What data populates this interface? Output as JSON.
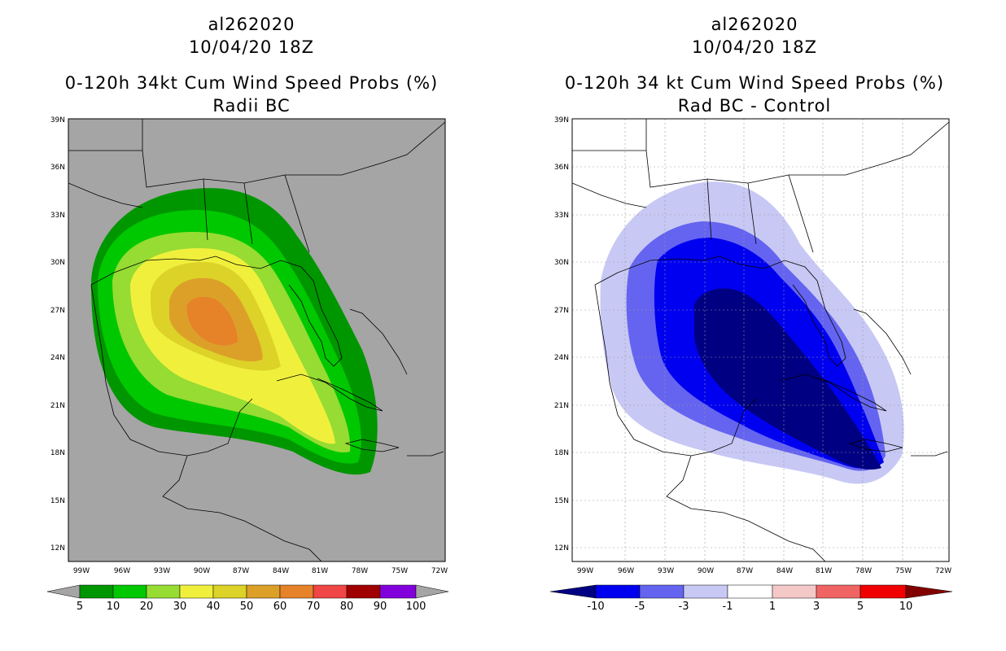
{
  "panels": [
    {
      "id": "left",
      "title_line1": "al262020",
      "title_line2": "10/04/20 18Z",
      "title_line3": "0-120h 34kt Cum Wind Speed Probs (%)",
      "title_line4": "Radii BC",
      "background_color": "#a5a5a5",
      "colorbar_labels": [
        "5",
        "10",
        "20",
        "30",
        "40",
        "50",
        "60",
        "70",
        "80",
        "90",
        "100"
      ],
      "colorbar_colors": [
        "#009600",
        "#00c800",
        "#96dc32",
        "#f0f03c",
        "#dcd228",
        "#dca028",
        "#e68228",
        "#f04646",
        "#a00000",
        "#8200dc"
      ],
      "lat_labels": [
        "39N",
        "36N",
        "33N",
        "30N",
        "27N",
        "24N",
        "21N",
        "18N",
        "15N",
        "12N"
      ],
      "lon_labels": [
        "99W",
        "96W",
        "93W",
        "90W",
        "87W",
        "84W",
        "81W",
        "78W",
        "75W",
        "72W"
      ]
    },
    {
      "id": "right",
      "title_line1": "al262020",
      "title_line2": "10/04/20 18Z",
      "title_line3": "0-120h 34 kt Cum Wind Speed Probs (%)",
      "title_line4": "Rad BC - Control",
      "background_color": "#ffffff",
      "colorbar_labels": [
        "-10",
        "-5",
        "-3",
        "-1",
        "1",
        "3",
        "5",
        "10"
      ],
      "colorbar_colors": [
        "#000082",
        "#0000f0",
        "#6464f0",
        "#c8c8f5",
        "#ffffff",
        "#f5c8c8",
        "#f06464",
        "#f00000",
        "#820000"
      ],
      "lat_labels": [
        "39N",
        "36N",
        "33N",
        "30N",
        "27N",
        "24N",
        "21N",
        "18N",
        "15N",
        "12N"
      ],
      "lon_labels": [
        "99W",
        "96W",
        "93W",
        "90W",
        "87W",
        "84W",
        "81W",
        "78W",
        "75W",
        "72W"
      ]
    }
  ]
}
